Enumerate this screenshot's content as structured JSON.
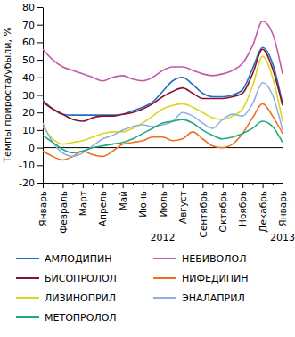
{
  "chart_data": {
    "type": "line",
    "y_label": "Темпы прироста/убыли, %",
    "categories": [
      "Январь",
      null,
      "Февраль",
      null,
      "Март",
      null,
      "Апрель",
      null,
      "Май",
      null,
      "Июнь",
      null,
      "Июль",
      null,
      "Август",
      null,
      "Сентябрь",
      null,
      "Октябрь",
      null,
      "Ноябрь",
      null,
      "Декабрь",
      null,
      "Январь"
    ],
    "annotations": [
      "2012",
      "2013"
    ],
    "ylim": [
      -20,
      80
    ],
    "yticks": [
      -20,
      -10,
      0,
      10,
      20,
      30,
      40,
      50,
      60,
      70,
      80
    ],
    "legend": "bottom",
    "series": [
      {
        "name": "АМЛОДИПИН",
        "color": "#1f6fc0",
        "values": [
          27,
          22,
          19,
          18.5,
          18.5,
          18.5,
          18.5,
          18.5,
          19,
          21,
          23,
          26,
          32,
          38,
          40,
          36,
          31,
          29,
          29,
          30,
          33,
          45,
          57,
          48,
          25
        ]
      },
      {
        "name": "НЕБИВОЛОЛ",
        "color": "#c05aa8",
        "values": [
          56,
          50,
          46,
          44,
          42,
          40,
          38,
          40,
          41,
          39,
          38,
          40,
          44,
          46,
          46,
          44,
          42,
          41,
          42,
          44,
          48,
          58,
          72,
          65,
          42
        ]
      },
      {
        "name": "БИСОПРОЛОЛ",
        "color": "#8b1030",
        "values": [
          26,
          22,
          19,
          16,
          15,
          17,
          18,
          18,
          19,
          20,
          22,
          25,
          29,
          32,
          34,
          31,
          28,
          28,
          28,
          29,
          31,
          42,
          56,
          45,
          24
        ]
      },
      {
        "name": "НИФЕДИПИН",
        "color": "#f07020",
        "values": [
          -2,
          -5,
          -7,
          -5,
          -2,
          -4,
          -5,
          -2,
          2,
          3,
          4,
          6,
          6,
          4,
          5,
          9,
          5,
          1,
          0,
          2,
          8,
          17,
          25,
          18,
          8
        ]
      },
      {
        "name": "ЛИЗИНОПРИЛ",
        "color": "#d8d820",
        "values": [
          12,
          5,
          2,
          3,
          4,
          6,
          8,
          9,
          9,
          11,
          14,
          18,
          22,
          24,
          25,
          23,
          20,
          17,
          16,
          18,
          22,
          35,
          52,
          40,
          15
        ]
      },
      {
        "name": "ЭНАЛАПРИЛ",
        "color": "#90b0e0",
        "values": [
          14,
          3,
          -3,
          -5,
          -3,
          1,
          5,
          7,
          10,
          12,
          13,
          12,
          13,
          15,
          20,
          18,
          14,
          11,
          16,
          19,
          18,
          25,
          37,
          30,
          10
        ]
      },
      {
        "name": "МЕТОПРОЛОЛ",
        "color": "#20a880",
        "values": [
          7,
          3,
          -1,
          -3,
          -2,
          0,
          1,
          2,
          3,
          5,
          8,
          11,
          14,
          15,
          16,
          14,
          10,
          7,
          5,
          6,
          8,
          11,
          15,
          12,
          3
        ]
      }
    ]
  }
}
